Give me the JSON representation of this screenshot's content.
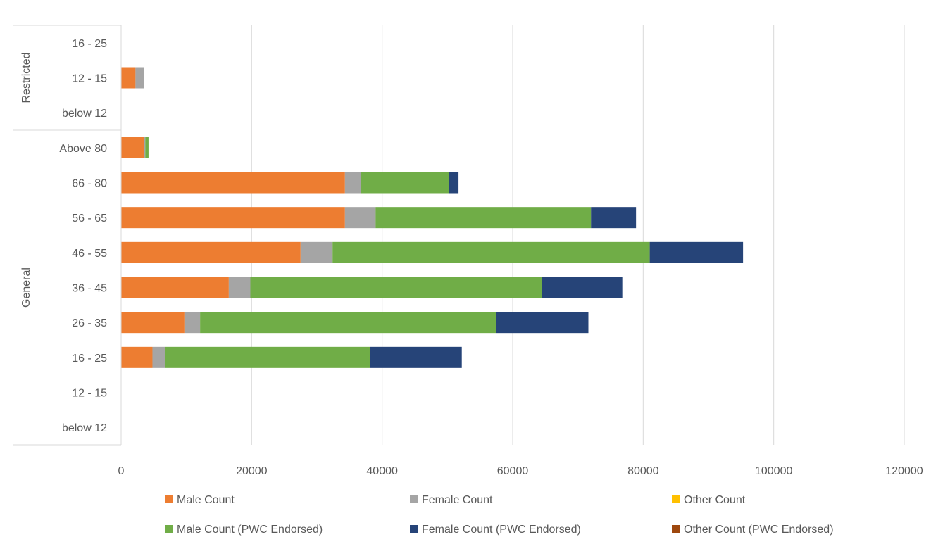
{
  "chart_data": {
    "type": "bar",
    "orientation": "horizontal",
    "stacked": true,
    "title": "",
    "xlabel": "",
    "ylabel": "",
    "xlim": [
      0,
      120000
    ],
    "x_ticks": [
      "0",
      "20000",
      "40000",
      "60000",
      "80000",
      "100000",
      "120000"
    ],
    "grid": "vertical",
    "legend_position": "bottom",
    "groups": [
      {
        "name": "General",
        "categories": [
          "below 12",
          "12 - 15",
          "16 - 25",
          "26 - 35",
          "36 - 45",
          "46 - 55",
          "56 - 65",
          "66 - 80",
          "Above 80"
        ]
      },
      {
        "name": "Restricted",
        "categories": [
          "below 12",
          "12 - 15",
          "16 - 25"
        ]
      }
    ],
    "categories": [
      "General / below 12",
      "General / 12 - 15",
      "General / 16 - 25",
      "General / 26 - 35",
      "General / 36 - 45",
      "General / 46 - 55",
      "General / 56 - 65",
      "General / 66 - 80",
      "General / Above 80",
      "Restricted / below 12",
      "Restricted / 12 - 15",
      "Restricted / 16 - 25"
    ],
    "series": [
      {
        "name": "Male Count",
        "color": "#ED7D31",
        "values": [
          0,
          0,
          4800,
          9700,
          16500,
          27500,
          34300,
          34300,
          3500,
          0,
          2200,
          0
        ]
      },
      {
        "name": "Female Count",
        "color": "#A5A5A5",
        "values": [
          0,
          0,
          1900,
          2400,
          3300,
          4900,
          4700,
          2400,
          200,
          0,
          1300,
          0
        ]
      },
      {
        "name": "Other Count",
        "color": "#FFC000",
        "values": [
          0,
          0,
          0,
          0,
          0,
          0,
          0,
          0,
          0,
          0,
          0,
          0
        ]
      },
      {
        "name": "Male Count (PWC Endorsed)",
        "color": "#70AD47",
        "values": [
          0,
          0,
          31500,
          45400,
          44700,
          48600,
          33000,
          13500,
          500,
          0,
          0,
          0
        ]
      },
      {
        "name": "Female Count (PWC Endorsed)",
        "color": "#264478",
        "values": [
          0,
          0,
          14000,
          14100,
          12300,
          14300,
          6900,
          1500,
          0,
          0,
          0,
          0
        ]
      },
      {
        "name": "Other Count (PWC Endorsed)",
        "color": "#9E480E",
        "values": [
          0,
          0,
          0,
          0,
          0,
          0,
          0,
          0,
          0,
          0,
          0,
          0
        ]
      }
    ]
  }
}
